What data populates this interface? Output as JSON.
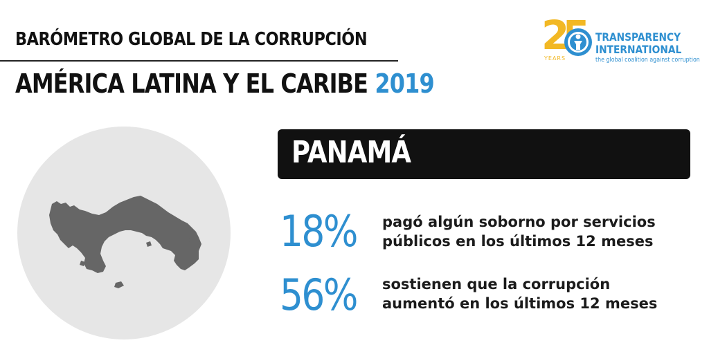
{
  "header": {
    "title": "BARÓMETRO GLOBAL DE LA CORRUPCIÓN",
    "region": "AMÉRICA LATINA Y EL CARIBE",
    "year": "2019"
  },
  "logo": {
    "number": "25",
    "years": "YEARS",
    "line1": "TRANSPARENCY",
    "line2": "INTERNATIONAL",
    "tagline": "the global coalition against corruption"
  },
  "country": "PANAMÁ",
  "stats": [
    {
      "value": "18%",
      "line1": "pagó algún soborno por servicios",
      "line2": "públicos en los últimos 12 meses"
    },
    {
      "value": "56%",
      "line1": "sostienen que la corrupción",
      "line2": "aumentó en los últimos 12 meses"
    }
  ],
  "colors": {
    "accent": "#2e8fd0",
    "logo_gold": "#f2b824",
    "map_fill": "#666666",
    "circle_bg": "#e6e6e6",
    "bar_bg": "#111111"
  }
}
